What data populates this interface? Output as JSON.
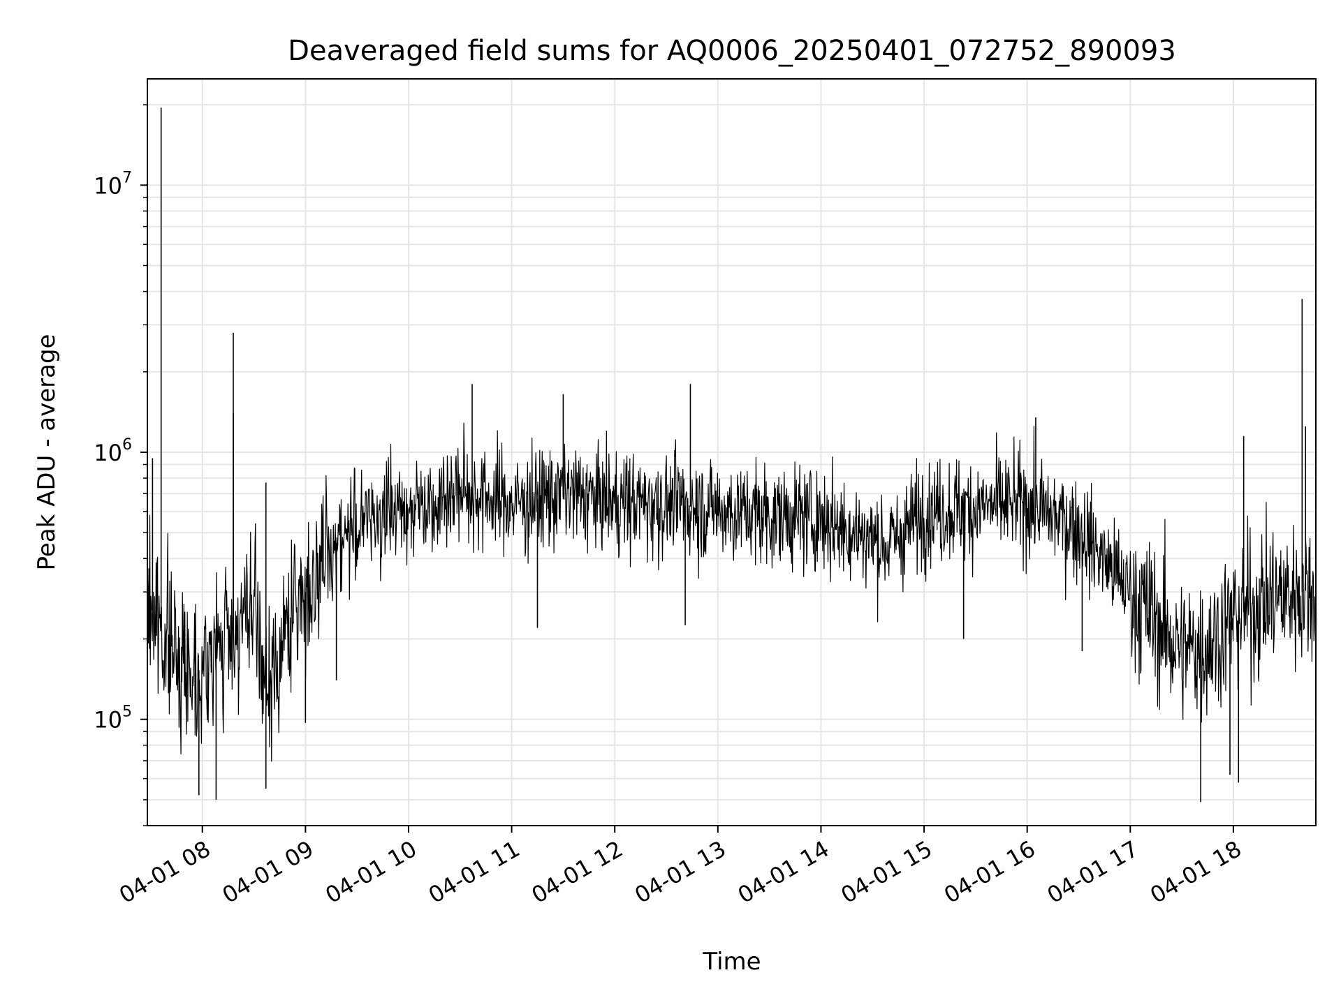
{
  "chart_data": {
    "type": "line",
    "title": "Deaveraged field sums for AQ0006_20250401_072752_890093",
    "xlabel": "Time",
    "ylabel": "Peak ADU - average",
    "x_axis": {
      "kind": "datetime",
      "ticks": [
        {
          "value": "2025-04-01T08:00",
          "label": "04-01 08"
        },
        {
          "value": "2025-04-01T09:00",
          "label": "04-01 09"
        },
        {
          "value": "2025-04-01T10:00",
          "label": "04-01 10"
        },
        {
          "value": "2025-04-01T11:00",
          "label": "04-01 11"
        },
        {
          "value": "2025-04-01T12:00",
          "label": "04-01 12"
        },
        {
          "value": "2025-04-01T13:00",
          "label": "04-01 13"
        },
        {
          "value": "2025-04-01T14:00",
          "label": "04-01 14"
        },
        {
          "value": "2025-04-01T15:00",
          "label": "04-01 15"
        },
        {
          "value": "2025-04-01T16:00",
          "label": "04-01 16"
        },
        {
          "value": "2025-04-01T17:00",
          "label": "04-01 17"
        },
        {
          "value": "2025-04-01T18:00",
          "label": "04-01 18"
        }
      ],
      "xlim": [
        "2025-04-01T07:28",
        "2025-04-01T18:48"
      ]
    },
    "y_axis": {
      "scale": "log",
      "ylim": [
        40000,
        25000000
      ],
      "ticks": [
        {
          "value": 100000,
          "base": "10",
          "exp": "5"
        },
        {
          "value": 1000000,
          "base": "10",
          "exp": "6"
        },
        {
          "value": 10000000,
          "base": "10",
          "exp": "7"
        }
      ]
    },
    "grid": true,
    "line_color": "#000000",
    "series": [
      {
        "envelope": [
          {
            "x": "2025-04-01T07:28",
            "y": 280000
          },
          {
            "x": "2025-04-01T07:45",
            "y": 170000
          },
          {
            "x": "2025-04-01T08:00",
            "y": 150000
          },
          {
            "x": "2025-04-01T08:15",
            "y": 210000
          },
          {
            "x": "2025-04-01T08:30",
            "y": 250000
          },
          {
            "x": "2025-04-01T08:38",
            "y": 120000
          },
          {
            "x": "2025-04-01T08:50",
            "y": 230000
          },
          {
            "x": "2025-04-01T09:00",
            "y": 300000
          },
          {
            "x": "2025-04-01T09:20",
            "y": 480000
          },
          {
            "x": "2025-04-01T09:40",
            "y": 580000
          },
          {
            "x": "2025-04-01T10:00",
            "y": 620000
          },
          {
            "x": "2025-04-01T10:30",
            "y": 720000
          },
          {
            "x": "2025-04-01T11:00",
            "y": 640000
          },
          {
            "x": "2025-04-01T11:30",
            "y": 700000
          },
          {
            "x": "2025-04-01T12:00",
            "y": 650000
          },
          {
            "x": "2025-04-01T12:30",
            "y": 640000
          },
          {
            "x": "2025-04-01T13:00",
            "y": 610000
          },
          {
            "x": "2025-04-01T13:30",
            "y": 580000
          },
          {
            "x": "2025-04-01T14:00",
            "y": 560000
          },
          {
            "x": "2025-04-01T14:40",
            "y": 450000
          },
          {
            "x": "2025-04-01T15:00",
            "y": 600000
          },
          {
            "x": "2025-04-01T15:30",
            "y": 620000
          },
          {
            "x": "2025-04-01T16:00",
            "y": 640000
          },
          {
            "x": "2025-04-01T16:30",
            "y": 520000
          },
          {
            "x": "2025-04-01T17:00",
            "y": 300000
          },
          {
            "x": "2025-04-01T17:30",
            "y": 180000
          },
          {
            "x": "2025-04-01T17:45",
            "y": 190000
          },
          {
            "x": "2025-04-01T18:00",
            "y": 240000
          },
          {
            "x": "2025-04-01T18:20",
            "y": 280000
          },
          {
            "x": "2025-04-01T18:48",
            "y": 310000
          }
        ],
        "spikes": [
          {
            "x": "2025-04-01T07:36",
            "y": 19500000
          },
          {
            "x": "2025-04-01T07:31",
            "y": 950000
          },
          {
            "x": "2025-04-01T08:18",
            "y": 2800000
          },
          {
            "x": "2025-04-01T08:18",
            "y": 1400000
          },
          {
            "x": "2025-04-01T08:37",
            "y": 770000
          },
          {
            "x": "2025-04-01T10:37",
            "y": 1800000
          },
          {
            "x": "2025-04-01T11:30",
            "y": 1650000
          },
          {
            "x": "2025-04-01T12:44",
            "y": 1800000
          },
          {
            "x": "2025-04-01T16:05",
            "y": 1350000
          },
          {
            "x": "2025-04-01T18:06",
            "y": 1150000
          },
          {
            "x": "2025-04-01T18:40",
            "y": 3750000
          },
          {
            "x": "2025-04-01T18:42",
            "y": 1250000
          },
          {
            "x": "2025-04-01T07:58",
            "y": 52000
          },
          {
            "x": "2025-04-01T08:08",
            "y": 50000
          },
          {
            "x": "2025-04-01T08:37",
            "y": 55000
          },
          {
            "x": "2025-04-01T09:00",
            "y": 97000
          },
          {
            "x": "2025-04-01T09:18",
            "y": 140000
          },
          {
            "x": "2025-04-01T11:15",
            "y": 220000
          },
          {
            "x": "2025-04-01T12:41",
            "y": 225000
          },
          {
            "x": "2025-04-01T15:23",
            "y": 200000
          },
          {
            "x": "2025-04-01T16:32",
            "y": 180000
          },
          {
            "x": "2025-04-01T17:41",
            "y": 49000
          },
          {
            "x": "2025-04-01T17:58",
            "y": 62000
          },
          {
            "x": "2025-04-01T18:03",
            "y": 58000
          }
        ]
      }
    ]
  }
}
